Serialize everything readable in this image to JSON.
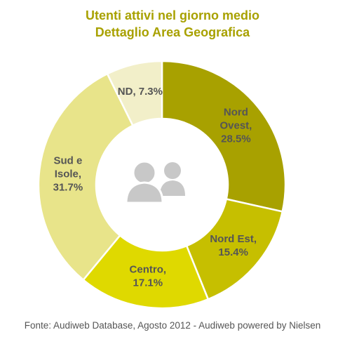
{
  "chart_data": {
    "type": "pie",
    "title": "Utenti attivi nel giorno medio",
    "subtitle": "Dettaglio Area Geografica",
    "slices": [
      {
        "name": "Nord Ovest",
        "value": 28.5,
        "label": [
          "Nord",
          "Ovest,",
          "28.5%"
        ],
        "color": "#a8a100"
      },
      {
        "name": "Nord Est",
        "value": 15.4,
        "label": [
          "Nord Est,",
          "15.4%"
        ],
        "color": "#c6bf00"
      },
      {
        "name": "Centro",
        "value": 17.1,
        "label": [
          "Centro,",
          "17.1%"
        ],
        "color": "#dfd900"
      },
      {
        "name": "Sud e Isole",
        "value": 31.7,
        "label": [
          "Sud e",
          "Isole,",
          "31.7%"
        ],
        "color": "#e8e48a"
      },
      {
        "name": "ND",
        "value": 7.3,
        "label": [
          "ND, 7.3%"
        ],
        "color": "#f2efc9"
      }
    ],
    "center_icon": "users-icon"
  },
  "source": "Fonte: Audiweb Database, Agosto 2012 - Audiweb powered by Nielsen"
}
